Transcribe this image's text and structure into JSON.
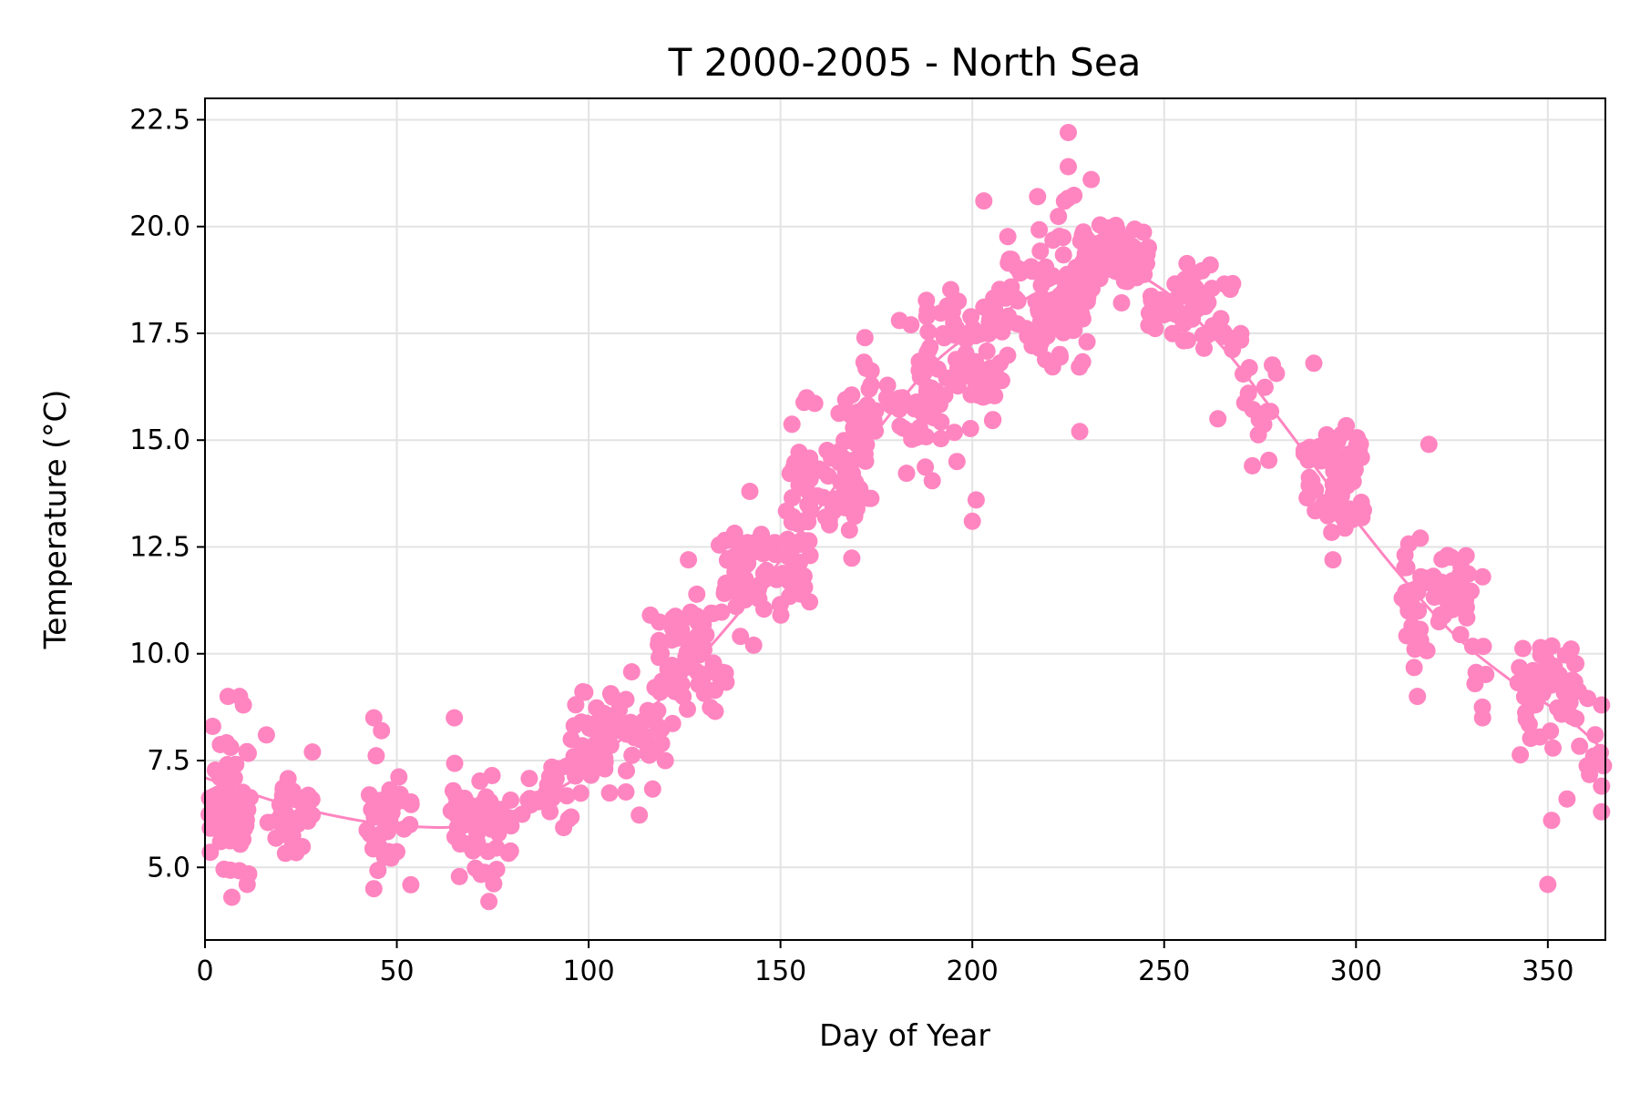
{
  "chart_data": {
    "type": "scatter",
    "title": "T 2000-2005 - North Sea",
    "xlabel": "Day of Year",
    "ylabel": "Temperature (°C)",
    "xlim": [
      0,
      365
    ],
    "ylim": [
      3.3,
      23.0
    ],
    "xticks": [
      0,
      50,
      100,
      150,
      200,
      250,
      300,
      350
    ],
    "yticks": [
      5.0,
      7.5,
      10.0,
      12.5,
      15.0,
      17.5,
      20.0,
      22.5
    ],
    "ytick_labels": [
      "5.0",
      "7.5",
      "10.0",
      "12.5",
      "15.0",
      "17.5",
      "20.0",
      "22.5"
    ],
    "grid": true,
    "color": "#ff85c0",
    "clusters": [
      {
        "x": [
          1,
          12
        ],
        "mean": 6.4,
        "spread": 1.3,
        "n": 60
      },
      {
        "x": [
          14,
          28
        ],
        "mean": 6.3,
        "spread": 0.8,
        "n": 28
      },
      {
        "x": [
          42,
          54
        ],
        "mean": 6.2,
        "spread": 1.0,
        "n": 36
      },
      {
        "x": [
          64,
          80
        ],
        "mean": 6.0,
        "spread": 1.0,
        "n": 52
      },
      {
        "x": [
          82,
          96
        ],
        "mean": 6.8,
        "spread": 0.9,
        "n": 24
      },
      {
        "x": [
          96,
          122
        ],
        "mean": 8.0,
        "spread": 1.0,
        "n": 72
      },
      {
        "x": [
          116,
          136
        ],
        "mean": 10.0,
        "spread": 1.0,
        "n": 60
      },
      {
        "x": [
          134,
          158
        ],
        "mean": 12.0,
        "spread": 1.0,
        "n": 78
      },
      {
        "x": [
          152,
          174
        ],
        "mean": 14.2,
        "spread": 1.1,
        "n": 70
      },
      {
        "x": [
          168,
          192
        ],
        "mean": 15.6,
        "spread": 1.1,
        "n": 60
      },
      {
        "x": [
          188,
          206
        ],
        "mean": 17.0,
        "spread": 1.3,
        "n": 66
      },
      {
        "x": [
          204,
          220
        ],
        "mean": 18.0,
        "spread": 1.2,
        "n": 56
      },
      {
        "x": [
          220,
          230
        ],
        "mean": 18.6,
        "spread": 1.4,
        "n": 62
      },
      {
        "x": [
          228,
          246
        ],
        "mean": 19.2,
        "spread": 0.7,
        "n": 72
      },
      {
        "x": [
          246,
          270
        ],
        "mean": 18.0,
        "spread": 0.8,
        "n": 66
      },
      {
        "x": [
          270,
          282
        ],
        "mean": 15.8,
        "spread": 0.8,
        "n": 14
      },
      {
        "x": [
          286,
          302
        ],
        "mean": 14.2,
        "spread": 1.0,
        "n": 60
      },
      {
        "x": [
          312,
          330
        ],
        "mean": 11.4,
        "spread": 1.0,
        "n": 58
      },
      {
        "x": [
          330,
          336
        ],
        "mean": 10.0,
        "spread": 1.2,
        "n": 6
      },
      {
        "x": [
          342,
          358
        ],
        "mean": 9.2,
        "spread": 1.1,
        "n": 56
      },
      {
        "x": [
          358,
          365
        ],
        "mean": 7.6,
        "spread": 1.0,
        "n": 8
      }
    ],
    "outliers": [
      {
        "x": 2,
        "y": 8.3
      },
      {
        "x": 6,
        "y": 9.0
      },
      {
        "x": 9,
        "y": 9.0
      },
      {
        "x": 10,
        "y": 8.8
      },
      {
        "x": 7,
        "y": 4.3
      },
      {
        "x": 11,
        "y": 4.6
      },
      {
        "x": 16,
        "y": 8.1
      },
      {
        "x": 28,
        "y": 7.7
      },
      {
        "x": 44,
        "y": 8.5
      },
      {
        "x": 44,
        "y": 4.5
      },
      {
        "x": 46,
        "y": 8.2
      },
      {
        "x": 65,
        "y": 8.5
      },
      {
        "x": 74,
        "y": 4.2
      },
      {
        "x": 99,
        "y": 9.1
      },
      {
        "x": 126,
        "y": 12.2
      },
      {
        "x": 142,
        "y": 13.8
      },
      {
        "x": 143,
        "y": 10.2
      },
      {
        "x": 172,
        "y": 17.4
      },
      {
        "x": 181,
        "y": 17.8
      },
      {
        "x": 184,
        "y": 17.7
      },
      {
        "x": 196,
        "y": 14.5
      },
      {
        "x": 201,
        "y": 13.6
      },
      {
        "x": 200,
        "y": 13.1
      },
      {
        "x": 203,
        "y": 20.6
      },
      {
        "x": 217,
        "y": 20.7
      },
      {
        "x": 225,
        "y": 22.2
      },
      {
        "x": 225,
        "y": 21.4
      },
      {
        "x": 228,
        "y": 15.2
      },
      {
        "x": 231,
        "y": 21.1
      },
      {
        "x": 262,
        "y": 19.1
      },
      {
        "x": 264,
        "y": 15.5
      },
      {
        "x": 273,
        "y": 14.4
      },
      {
        "x": 289,
        "y": 16.8
      },
      {
        "x": 294,
        "y": 12.2
      },
      {
        "x": 316,
        "y": 9.0
      },
      {
        "x": 319,
        "y": 14.9
      },
      {
        "x": 333,
        "y": 8.5
      },
      {
        "x": 333,
        "y": 11.8
      },
      {
        "x": 350,
        "y": 4.6
      },
      {
        "x": 351,
        "y": 6.1
      },
      {
        "x": 355,
        "y": 6.6
      },
      {
        "x": 364,
        "y": 8.8
      },
      {
        "x": 364,
        "y": 6.3
      },
      {
        "x": 364,
        "y": 6.9
      }
    ],
    "trend": {
      "x": [
        0,
        20,
        40,
        55,
        70,
        85,
        100,
        115,
        130,
        145,
        160,
        175,
        190,
        205,
        220,
        235,
        250,
        265,
        280,
        295,
        310,
        325,
        340,
        355,
        365
      ],
      "y": [
        7.1,
        6.5,
        6.1,
        5.95,
        6.0,
        6.5,
        7.3,
        8.6,
        10.0,
        11.6,
        13.4,
        15.2,
        16.8,
        17.8,
        18.6,
        19.1,
        18.5,
        17.2,
        15.5,
        13.7,
        12.0,
        10.5,
        9.4,
        8.5,
        7.7
      ]
    }
  }
}
